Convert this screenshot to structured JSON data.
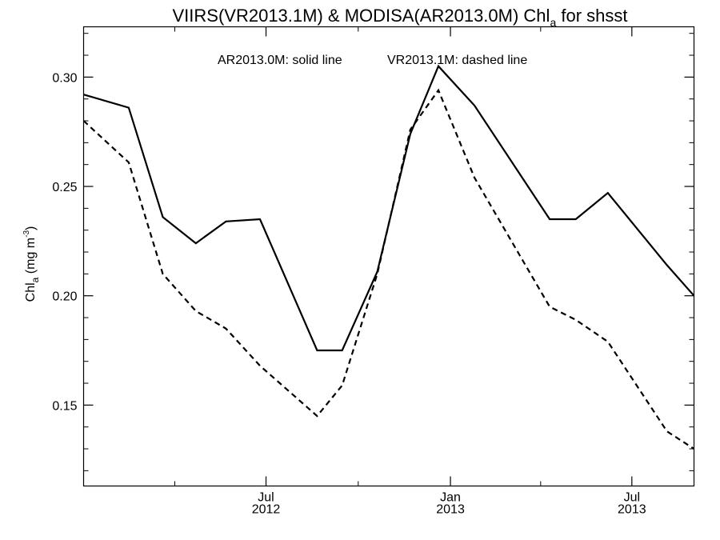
{
  "chart_data": {
    "type": "line",
    "title": {
      "main": "VIIRS(VR2013.1M) & MODISA(AR2013.0M)  Chl",
      "sub": "a",
      "tail": " for shsst"
    },
    "ylabel": {
      "main": "Chl",
      "sub": "a",
      "unit": " (mg m",
      "sup": "-3",
      "close": ")"
    },
    "xlabel": "",
    "legend_text": {
      "solid": "AR2013.0M: solid line",
      "dashed": "VR2013.1M: dashed line"
    },
    "x_axis": {
      "type": "date",
      "range": [
        "2012-01-01",
        "2013-09-01"
      ],
      "major_ticks": [
        {
          "date": "2012-07-01",
          "label": "Jul",
          "year": "2012"
        },
        {
          "date": "2013-01-01",
          "label": "Jan",
          "year": "2013"
        },
        {
          "date": "2013-07-01",
          "label": "Jul",
          "year": "2013"
        }
      ],
      "minor_ticks": [
        "2012-04-01",
        "2012-10-01",
        "2013-04-01"
      ]
    },
    "ylim": [
      0.113,
      0.323
    ],
    "yticks": [
      0.15,
      0.2,
      0.25,
      0.3
    ],
    "ytick_labels": [
      "0.15",
      "0.20",
      "0.25",
      "0.30"
    ],
    "series": [
      {
        "line_style": "solid",
        "color": "#000000",
        "points": [
          {
            "x": "2012-01-01",
            "y": 0.292
          },
          {
            "x": "2012-02-15",
            "y": 0.286
          },
          {
            "x": "2012-03-20",
            "y": 0.236
          },
          {
            "x": "2012-04-22",
            "y": 0.224
          },
          {
            "x": "2012-05-22",
            "y": 0.234
          },
          {
            "x": "2012-06-25",
            "y": 0.235
          },
          {
            "x": "2012-08-21",
            "y": 0.175
          },
          {
            "x": "2012-09-15",
            "y": 0.175
          },
          {
            "x": "2012-10-20",
            "y": 0.211
          },
          {
            "x": "2012-11-22",
            "y": 0.274
          },
          {
            "x": "2012-12-20",
            "y": 0.305
          },
          {
            "x": "2013-01-25",
            "y": 0.287
          },
          {
            "x": "2013-04-10",
            "y": 0.235
          },
          {
            "x": "2013-05-06",
            "y": 0.235
          },
          {
            "x": "2013-06-07",
            "y": 0.247
          },
          {
            "x": "2013-08-05",
            "y": 0.214
          },
          {
            "x": "2013-09-01",
            "y": 0.2
          }
        ]
      },
      {
        "line_style": "dashed",
        "color": "#000000",
        "points": [
          {
            "x": "2012-01-01",
            "y": 0.28
          },
          {
            "x": "2012-02-15",
            "y": 0.261
          },
          {
            "x": "2012-03-20",
            "y": 0.21
          },
          {
            "x": "2012-04-22",
            "y": 0.193
          },
          {
            "x": "2012-05-22",
            "y": 0.185
          },
          {
            "x": "2012-06-25",
            "y": 0.168
          },
          {
            "x": "2012-08-21",
            "y": 0.145
          },
          {
            "x": "2012-09-15",
            "y": 0.159
          },
          {
            "x": "2012-10-20",
            "y": 0.21
          },
          {
            "x": "2012-11-22",
            "y": 0.276
          },
          {
            "x": "2012-12-20",
            "y": 0.294
          },
          {
            "x": "2013-01-25",
            "y": 0.254
          },
          {
            "x": "2013-04-10",
            "y": 0.195
          },
          {
            "x": "2013-05-06",
            "y": 0.189
          },
          {
            "x": "2013-06-07",
            "y": 0.179
          },
          {
            "x": "2013-08-05",
            "y": 0.138
          },
          {
            "x": "2013-09-01",
            "y": 0.13
          }
        ]
      }
    ],
    "grid": false
  }
}
